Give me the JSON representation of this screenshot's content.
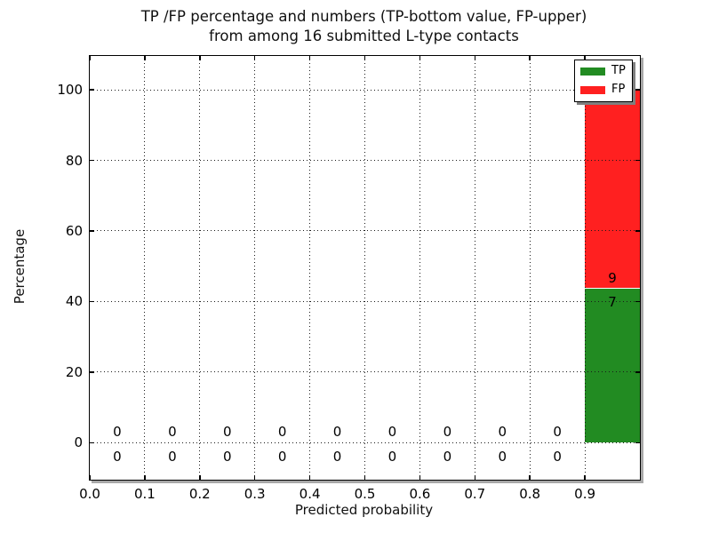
{
  "chart_data": {
    "type": "bar",
    "stacked": true,
    "title_lines": [
      "TP /FP percentage and numbers (TP-bottom value, FP-upper)",
      "from among 16 submitted L-type contacts"
    ],
    "xlabel": "Predicted probability",
    "ylabel": "Percentage",
    "total_submitted": 16,
    "xlim": [
      0.0,
      1.0
    ],
    "ylim": [
      -10.5,
      109.6
    ],
    "grid": true,
    "grid_style": "dotted",
    "x_ticks": {
      "values": [
        0.0,
        0.1,
        0.2,
        0.3,
        0.4,
        0.5,
        0.6,
        0.7,
        0.8,
        0.9
      ],
      "labels": [
        "0.0",
        "0.1",
        "0.2",
        "0.3",
        "0.4",
        "0.5",
        "0.6",
        "0.7",
        "0.8",
        "0.9"
      ]
    },
    "y_ticks": {
      "values": [
        0,
        20,
        40,
        60,
        80,
        100
      ],
      "labels": [
        "0",
        "20",
        "40",
        "60",
        "80",
        "100"
      ]
    },
    "bins": {
      "width": 0.1,
      "centers": [
        0.05,
        0.15,
        0.25,
        0.35,
        0.45,
        0.55,
        0.65,
        0.75,
        0.85,
        0.95
      ]
    },
    "series": [
      {
        "name": "TP",
        "color": "#228b22",
        "counts": [
          0,
          0,
          0,
          0,
          0,
          0,
          0,
          0,
          0,
          7
        ],
        "percentages": [
          0,
          0,
          0,
          0,
          0,
          0,
          0,
          0,
          0,
          43.75
        ]
      },
      {
        "name": "FP",
        "color": "#ff2020",
        "counts": [
          0,
          0,
          0,
          0,
          0,
          0,
          0,
          0,
          0,
          9
        ],
        "percentages": [
          0,
          0,
          0,
          0,
          0,
          0,
          0,
          0,
          0,
          56.25
        ]
      }
    ],
    "count_label_offsets_pct": {
      "fp": 3.0,
      "tp": -4.0
    },
    "legend": {
      "location": "upper right",
      "entries": [
        {
          "label": "TP",
          "color": "#228b22"
        },
        {
          "label": "FP",
          "color": "#ff2020"
        }
      ]
    }
  }
}
